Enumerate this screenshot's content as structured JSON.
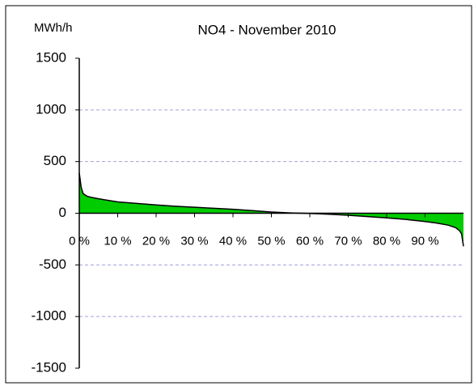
{
  "chart_data": {
    "type": "area",
    "title": "NO4  - November 2010",
    "y_label": "MWh/h",
    "x": [
      0,
      0.5,
      1,
      2,
      3,
      5,
      10,
      15,
      20,
      25,
      30,
      35,
      40,
      45,
      50,
      55,
      60,
      65,
      70,
      75,
      80,
      85,
      90,
      93,
      96,
      98,
      99,
      99.5,
      100
    ],
    "values": [
      390,
      250,
      190,
      165,
      155,
      140,
      110,
      95,
      80,
      68,
      58,
      48,
      38,
      25,
      12,
      3,
      -2,
      -10,
      -20,
      -32,
      -45,
      -60,
      -80,
      -95,
      -115,
      -140,
      -170,
      -200,
      -320
    ],
    "color": "#00cc00",
    "line_color": "#000000",
    "xlim": [
      0,
      100
    ],
    "xticks": [
      {
        "value": 0,
        "label": "0 %"
      },
      {
        "value": 10,
        "label": "10 %"
      },
      {
        "value": 20,
        "label": "20 %"
      },
      {
        "value": 30,
        "label": "30 %"
      },
      {
        "value": 40,
        "label": "40 %"
      },
      {
        "value": 50,
        "label": "50 %"
      },
      {
        "value": 60,
        "label": "60 %"
      },
      {
        "value": 70,
        "label": "70 %"
      },
      {
        "value": 80,
        "label": "80 %"
      },
      {
        "value": 90,
        "label": "90 %"
      }
    ],
    "ylim": [
      -1500,
      1500
    ],
    "yticks": [
      -1500,
      -1000,
      -500,
      0,
      500,
      1000,
      1500
    ],
    "grid": true
  }
}
